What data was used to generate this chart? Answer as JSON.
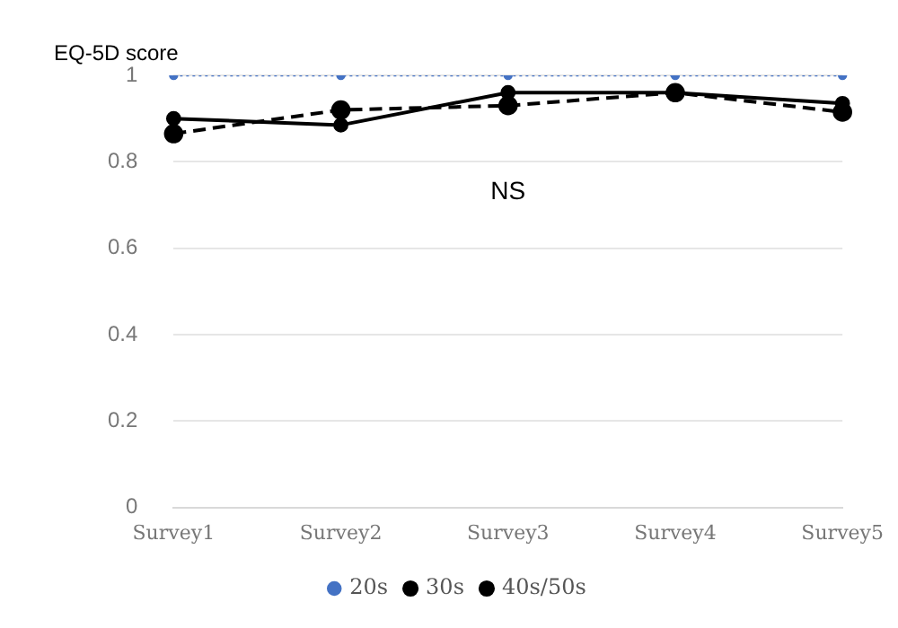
{
  "chart_data": {
    "type": "line",
    "ylabel": "EQ-5D score",
    "categories": [
      "Survey1",
      "Survey2",
      "Survey3",
      "Survey4",
      "Survey5"
    ],
    "series": [
      {
        "name": "20s",
        "color": "#4472c4",
        "line_style": "dotted",
        "values": [
          1,
          1,
          1,
          1,
          1
        ]
      },
      {
        "name": "30s",
        "color": "#000000",
        "line_style": "solid",
        "values": [
          0.9,
          0.885,
          0.96,
          0.96,
          0.935
        ]
      },
      {
        "name": "40s/50s",
        "color": "#000000",
        "line_style": "dashed",
        "values": [
          0.865,
          0.92,
          0.93,
          0.96,
          0.915
        ]
      }
    ],
    "ylim": [
      0,
      1
    ],
    "yticks": [
      0,
      0.2,
      0.4,
      0.6,
      0.8,
      1
    ],
    "grid": "y",
    "legend": "bottom",
    "marker": "circle",
    "annotations": [
      "NS"
    ]
  }
}
